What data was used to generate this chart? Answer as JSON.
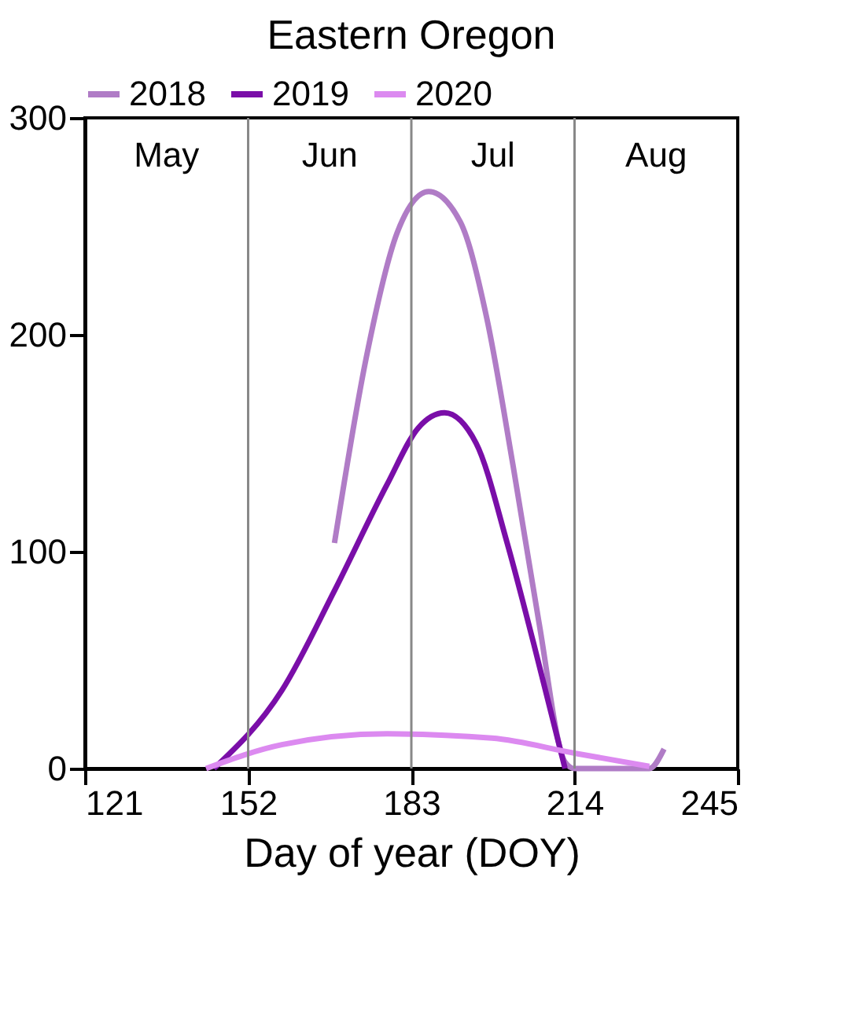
{
  "chart_data": {
    "type": "line",
    "title": "Eastern Oregon",
    "xlabel": "Day of year (DOY)",
    "xlim": [
      121,
      245
    ],
    "xticks": [
      121,
      152,
      183,
      214,
      245
    ],
    "ylim": [
      0,
      300
    ],
    "yticks": [
      0,
      100,
      200,
      300
    ],
    "grid": false,
    "legend": "top",
    "marker": "none",
    "line_style": "solid",
    "series": [
      {
        "name": "2018",
        "color": "#b07cc6",
        "x": [
          168.4,
          174.4,
          180.3,
          186.3,
          192.3,
          197.3,
          202.3,
          207.2,
          212.2,
          214,
          228.2,
          231
        ],
        "values": [
          104,
          189,
          247,
          266,
          252,
          208,
          140,
          68,
          3,
          0,
          0,
          9
        ]
      },
      {
        "name": "2019",
        "color": "#7a0ea8",
        "x": [
          145.5,
          158.4,
          168.4,
          178.4,
          184.3,
          189.3,
          195.3,
          201.2,
          206.2,
          212.2
        ],
        "values": [
          0,
          36,
          82,
          131,
          157,
          164,
          150,
          104,
          58,
          0
        ]
      },
      {
        "name": "2020",
        "color": "#dc8af0",
        "x": [
          144,
          158.4,
          178.4,
          198.3,
          214.2,
          228.2
        ],
        "values": [
          0,
          11,
          16,
          14,
          7,
          1
        ]
      }
    ],
    "ref_lines": [
      {
        "axis": "x",
        "value": 152,
        "color": "#888888"
      },
      {
        "axis": "x",
        "value": 183,
        "color": "#888888"
      },
      {
        "axis": "x",
        "value": 214,
        "color": "#888888"
      }
    ],
    "annotations": [
      "May",
      "Jun",
      "Jul",
      "Aug"
    ]
  }
}
